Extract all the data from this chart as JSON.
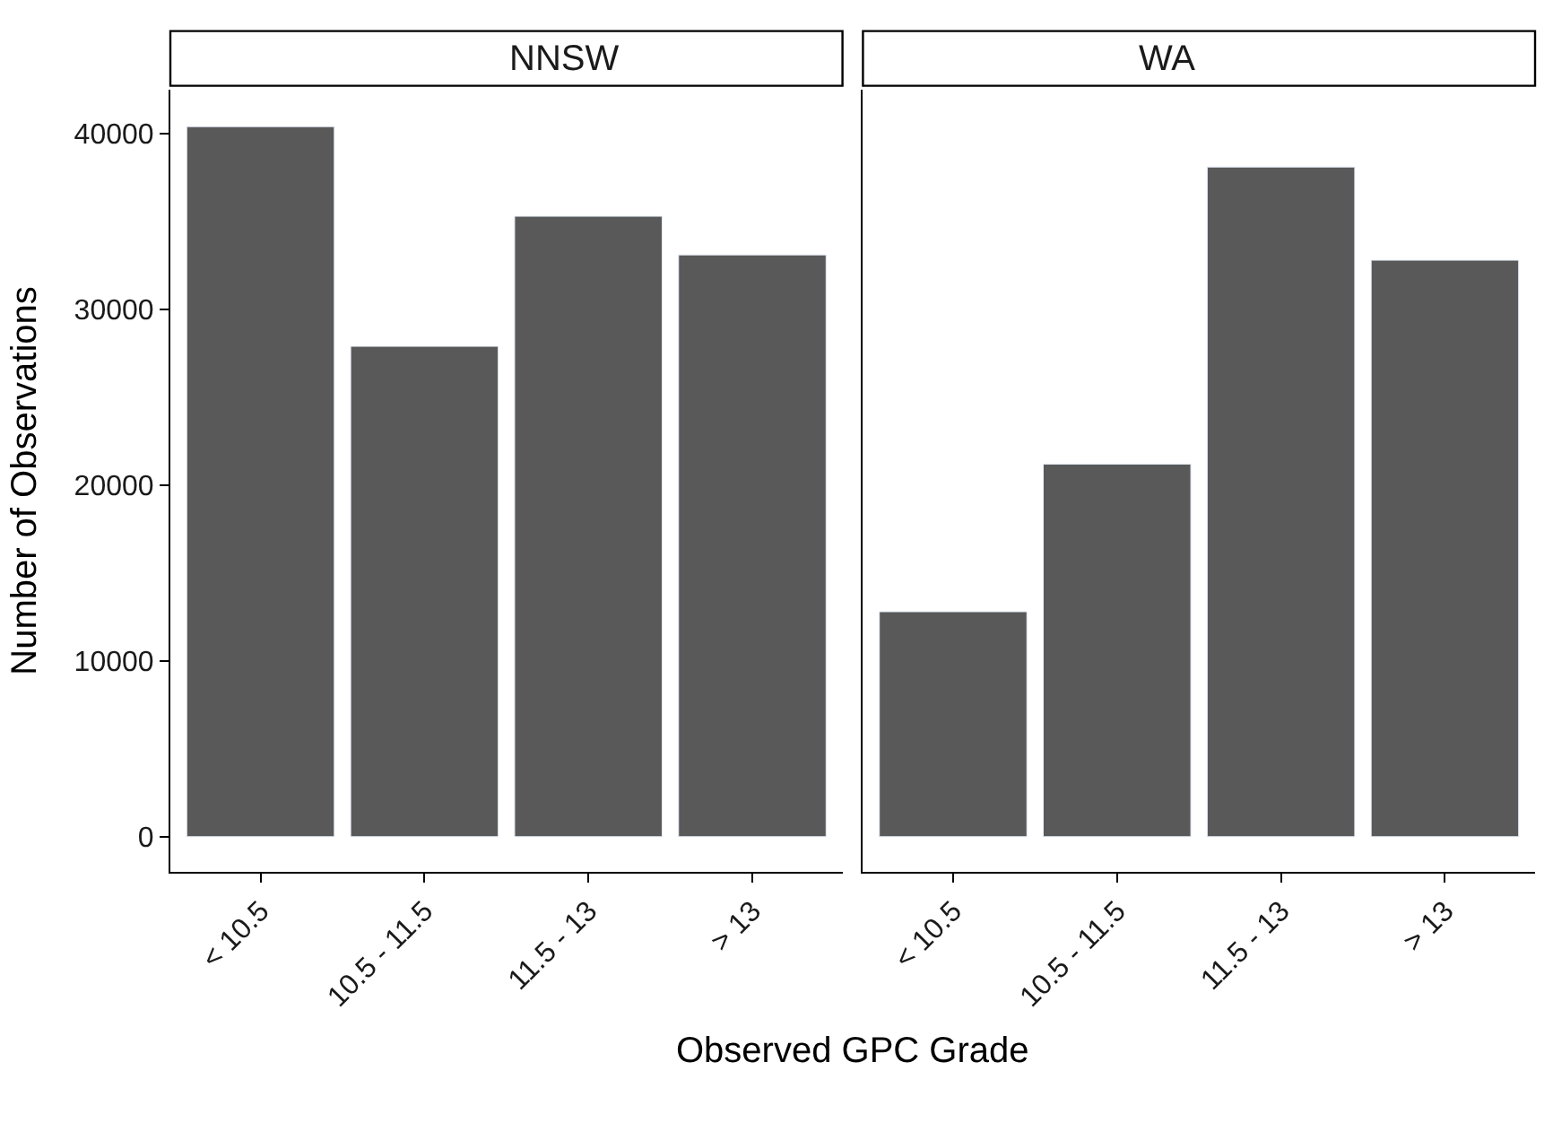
{
  "chart_data": [
    {
      "type": "bar",
      "title": "NNSW",
      "ylabel": "Number of Observations",
      "xlabel": "Observed GPC Grade",
      "categories": [
        "< 10.5",
        "10.5 - 11.5",
        "11.5 - 13",
        "> 13"
      ],
      "values": [
        40400,
        27900,
        35300,
        33100
      ],
      "color": "#595959",
      "ylim": [
        -2000,
        42500
      ],
      "yticks": [
        0,
        10000,
        20000,
        30000,
        40000
      ]
    },
    {
      "type": "bar",
      "title": "WA",
      "categories": [
        "< 10.5",
        "10.5 - 11.5",
        "11.5 - 13",
        "> 13"
      ],
      "values": [
        12800,
        21200,
        38100,
        32800
      ],
      "color": "#595959",
      "ylim": [
        -2000,
        42500
      ],
      "yticks": [
        0,
        10000,
        20000,
        30000,
        40000
      ],
      "tick_labels": "x"
    }
  ]
}
